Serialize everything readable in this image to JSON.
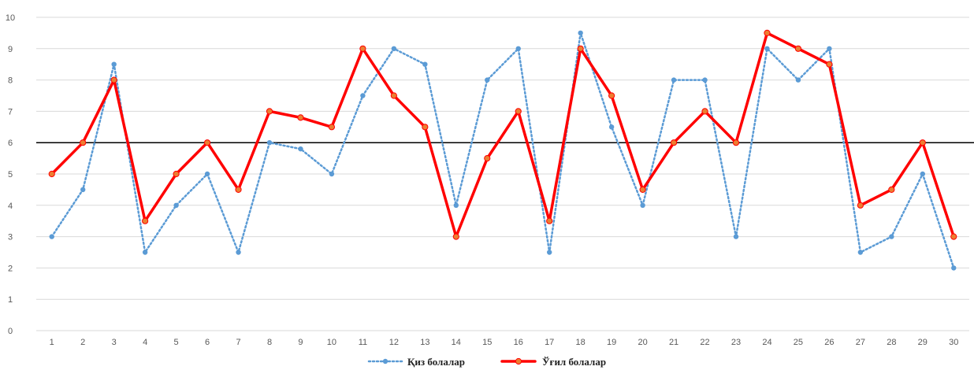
{
  "chart_data": {
    "type": "line",
    "title": "",
    "xlabel": "",
    "ylabel": "",
    "ylim": [
      0,
      10
    ],
    "yticks": [
      0,
      1,
      2,
      3,
      4,
      5,
      6,
      7,
      8,
      9,
      10
    ],
    "categories": [
      "1",
      "2",
      "3",
      "4",
      "5",
      "6",
      "7",
      "8",
      "9",
      "10",
      "11",
      "12",
      "13",
      "14",
      "15",
      "16",
      "17",
      "18",
      "19",
      "20",
      "21",
      "22",
      "23",
      "24",
      "25",
      "26",
      "27",
      "28",
      "29",
      "30"
    ],
    "grid": true,
    "reference_line": {
      "value": 6,
      "color": "#000000"
    },
    "legend_position": "bottom",
    "series": [
      {
        "name": "Қиз болалар",
        "color": "#5b9bd5",
        "style": "dotted",
        "values": [
          3,
          4.5,
          8.5,
          2.5,
          4,
          5,
          2.5,
          6,
          5.8,
          5,
          7.5,
          9,
          8.5,
          4,
          8,
          9,
          2.5,
          9.5,
          6.5,
          4,
          8,
          8,
          3,
          9,
          8,
          9,
          2.5,
          3,
          5,
          2
        ]
      },
      {
        "name": "Ўғил болалар",
        "color": "#ff0000",
        "marker_color": "#ed7d31",
        "style": "solid",
        "values": [
          5,
          6,
          8,
          3.5,
          5,
          6,
          4.5,
          7,
          6.8,
          6.5,
          9,
          7.5,
          6.5,
          3,
          5.5,
          7,
          3.5,
          9,
          7.5,
          4.5,
          6,
          7,
          6,
          9.5,
          9,
          8.5,
          4,
          4.5,
          6,
          3
        ]
      }
    ]
  }
}
